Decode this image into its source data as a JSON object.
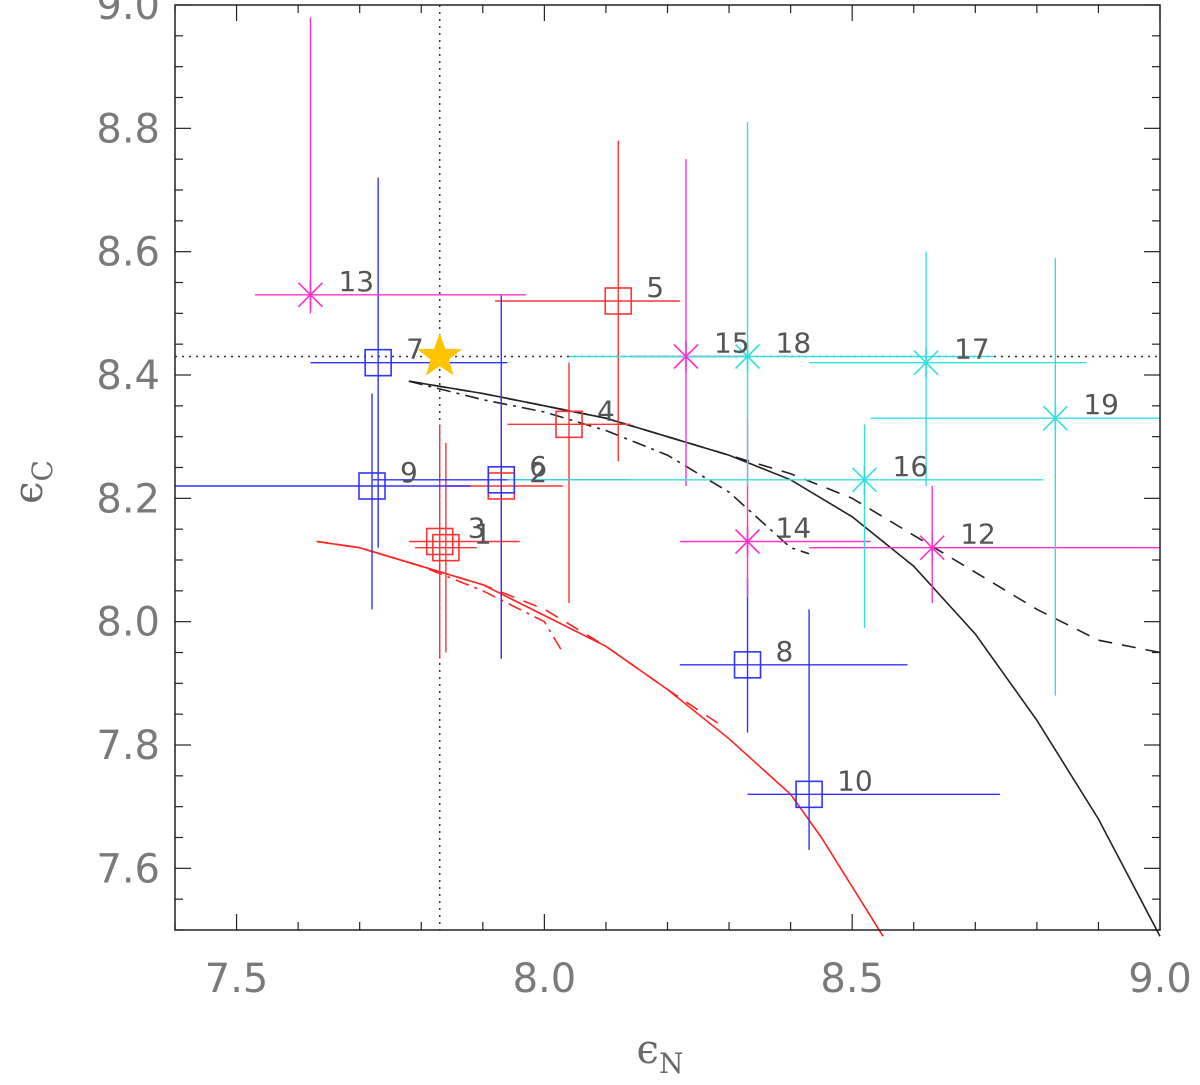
{
  "chart_data": {
    "type": "scatter",
    "title": "",
    "xlabel": "ϵ",
    "xlabel_sub": "N",
    "ylabel": "ϵ",
    "ylabel_sub": "C",
    "xlim": [
      7.4,
      9.0
    ],
    "ylim": [
      7.5,
      9.0
    ],
    "xticks": [
      "7.5",
      "8.0",
      "8.5",
      "9.0"
    ],
    "xtick_values": [
      7.5,
      8.0,
      8.5,
      9.0
    ],
    "yticks": [
      "7.6",
      "7.8",
      "8.0",
      "8.2",
      "8.4",
      "8.6",
      "8.8",
      "9.0"
    ],
    "ytick_values": [
      7.6,
      7.8,
      8.0,
      8.2,
      8.4,
      8.6,
      8.8,
      9.0
    ],
    "grid": false,
    "reference": {
      "x": 7.83,
      "y": 8.43,
      "marker": "star",
      "color": "#ffc400"
    },
    "series": [
      {
        "color": "#ff3333",
        "marker": "square",
        "points": [
          {
            "label": "1",
            "x": 7.84,
            "y": 8.12,
            "xerr": [
              7.79,
              7.89
            ],
            "yerr": [
              7.95,
              8.29
            ]
          },
          {
            "label": "3",
            "x": 7.83,
            "y": 8.13,
            "xerr": [
              7.78,
              7.96
            ],
            "yerr": [
              7.94,
              8.32
            ]
          },
          {
            "label": "2",
            "x": 7.93,
            "y": 8.22,
            "xerr": [
              7.84,
              8.03
            ],
            "yerr": [
              7.94,
              8.38
            ]
          },
          {
            "label": "4",
            "x": 8.04,
            "y": 8.32,
            "xerr": [
              7.94,
              8.14
            ],
            "yerr": [
              8.03,
              8.42
            ]
          },
          {
            "label": "5",
            "x": 8.12,
            "y": 8.52,
            "xerr": [
              7.92,
              8.22
            ],
            "yerr": [
              8.26,
              8.78
            ]
          }
        ]
      },
      {
        "color": "#3333ff",
        "marker": "square",
        "points": [
          {
            "label": "7",
            "x": 7.73,
            "y": 8.42,
            "xerr": [
              7.62,
              7.94
            ],
            "yerr": [
              8.12,
              8.72
            ]
          },
          {
            "label": "9",
            "x": 7.72,
            "y": 8.22,
            "xerr": [
              7.4,
              7.88
            ],
            "yerr": [
              8.02,
              8.37
            ]
          },
          {
            "label": "6",
            "x": 7.93,
            "y": 8.23,
            "xerr": [
              7.72,
              8.14
            ],
            "yerr": [
              7.94,
              8.53
            ]
          },
          {
            "label": "8",
            "x": 8.33,
            "y": 7.93,
            "xerr": [
              8.22,
              8.59
            ],
            "yerr": [
              7.82,
              8.07
            ]
          },
          {
            "label": "10",
            "x": 8.43,
            "y": 7.72,
            "xerr": [
              8.33,
              8.74
            ],
            "yerr": [
              7.63,
              8.02
            ]
          }
        ]
      },
      {
        "color": "#ff33cc",
        "marker": "star",
        "points": [
          {
            "label": "13",
            "x": 7.62,
            "y": 8.53,
            "xerr": [
              7.53,
              7.97
            ],
            "yerr": [
              8.5,
              8.98
            ]
          },
          {
            "label": "15",
            "x": 8.23,
            "y": 8.43,
            "xerr": [
              8.14,
              8.33
            ],
            "yerr": [
              8.22,
              8.75
            ]
          },
          {
            "label": "14",
            "x": 8.33,
            "y": 8.13,
            "xerr": [
              8.22,
              8.53
            ],
            "yerr": [
              8.04,
              8.33
            ]
          },
          {
            "label": "12",
            "x": 8.63,
            "y": 8.12,
            "xerr": [
              8.43,
              9.0
            ],
            "yerr": [
              8.03,
              8.22
            ]
          }
        ]
      },
      {
        "color": "#33e0e0",
        "marker": "star",
        "points": [
          {
            "label": "18",
            "x": 8.33,
            "y": 8.43,
            "xerr": [
              8.04,
              8.73
            ],
            "yerr": [
              8.22,
              8.81
            ]
          },
          {
            "label": "17",
            "x": 8.62,
            "y": 8.42,
            "xerr": [
              8.43,
              8.88
            ],
            "yerr": [
              8.22,
              8.6
            ]
          },
          {
            "label": "19",
            "x": 8.83,
            "y": 8.33,
            "xerr": [
              8.53,
              9.0
            ],
            "yerr": [
              7.88,
              8.59
            ]
          },
          {
            "label": "16",
            "x": 8.52,
            "y": 8.23,
            "xerr": [
              7.94,
              8.81
            ],
            "yerr": [
              7.99,
              8.32
            ]
          }
        ]
      }
    ],
    "curves": [
      {
        "color": "#222222",
        "dash": "solid",
        "points": [
          [
            7.78,
            8.39
          ],
          [
            7.9,
            8.37
          ],
          [
            8.0,
            8.35
          ],
          [
            8.1,
            8.33
          ],
          [
            8.2,
            8.3
          ],
          [
            8.3,
            8.27
          ],
          [
            8.4,
            8.23
          ],
          [
            8.5,
            8.17
          ],
          [
            8.6,
            8.09
          ],
          [
            8.7,
            7.98
          ],
          [
            8.8,
            7.84
          ],
          [
            8.9,
            7.68
          ],
          [
            9.0,
            7.49
          ]
        ]
      },
      {
        "color": "#222222",
        "dash": "dashed",
        "points": [
          [
            7.78,
            8.39
          ],
          [
            7.9,
            8.37
          ],
          [
            8.0,
            8.35
          ],
          [
            8.1,
            8.33
          ],
          [
            8.2,
            8.3
          ],
          [
            8.3,
            8.27
          ],
          [
            8.4,
            8.24
          ],
          [
            8.5,
            8.2
          ],
          [
            8.6,
            8.14
          ],
          [
            8.7,
            8.08
          ],
          [
            8.8,
            8.02
          ],
          [
            8.9,
            7.97
          ],
          [
            9.0,
            7.95
          ]
        ]
      },
      {
        "color": "#222222",
        "dash": "dashdot",
        "points": [
          [
            7.78,
            8.39
          ],
          [
            7.9,
            8.36
          ],
          [
            8.0,
            8.34
          ],
          [
            8.1,
            8.31
          ],
          [
            8.2,
            8.27
          ],
          [
            8.3,
            8.21
          ],
          [
            8.4,
            8.12
          ],
          [
            8.43,
            8.11
          ]
        ]
      },
      {
        "color": "#ff2222",
        "dash": "solid",
        "points": [
          [
            7.63,
            8.13
          ],
          [
            7.7,
            8.12
          ],
          [
            7.8,
            8.09
          ],
          [
            7.9,
            8.06
          ],
          [
            8.0,
            8.01
          ],
          [
            8.1,
            7.96
          ],
          [
            8.2,
            7.89
          ],
          [
            8.3,
            7.81
          ],
          [
            8.4,
            7.72
          ],
          [
            8.45,
            7.65
          ],
          [
            8.5,
            7.57
          ],
          [
            8.55,
            7.49
          ]
        ]
      },
      {
        "color": "#ff2222",
        "dash": "dashed",
        "points": [
          [
            7.63,
            8.13
          ],
          [
            7.7,
            8.12
          ],
          [
            7.8,
            8.09
          ],
          [
            7.9,
            8.06
          ],
          [
            8.0,
            8.02
          ],
          [
            8.1,
            7.96
          ],
          [
            8.2,
            7.89
          ],
          [
            8.29,
            7.83
          ]
        ]
      },
      {
        "color": "#ff2222",
        "dash": "dashdot",
        "points": [
          [
            7.63,
            8.13
          ],
          [
            7.7,
            8.12
          ],
          [
            7.8,
            8.09
          ],
          [
            7.9,
            8.05
          ],
          [
            8.0,
            8.0
          ],
          [
            8.03,
            7.95
          ]
        ]
      }
    ],
    "reference_lines": [
      {
        "orientation": "horizontal",
        "value": 8.43,
        "dash": "dotted",
        "color": "#333333"
      },
      {
        "orientation": "vertical",
        "value": 7.83,
        "dash": "dotted",
        "color": "#333333"
      }
    ]
  }
}
